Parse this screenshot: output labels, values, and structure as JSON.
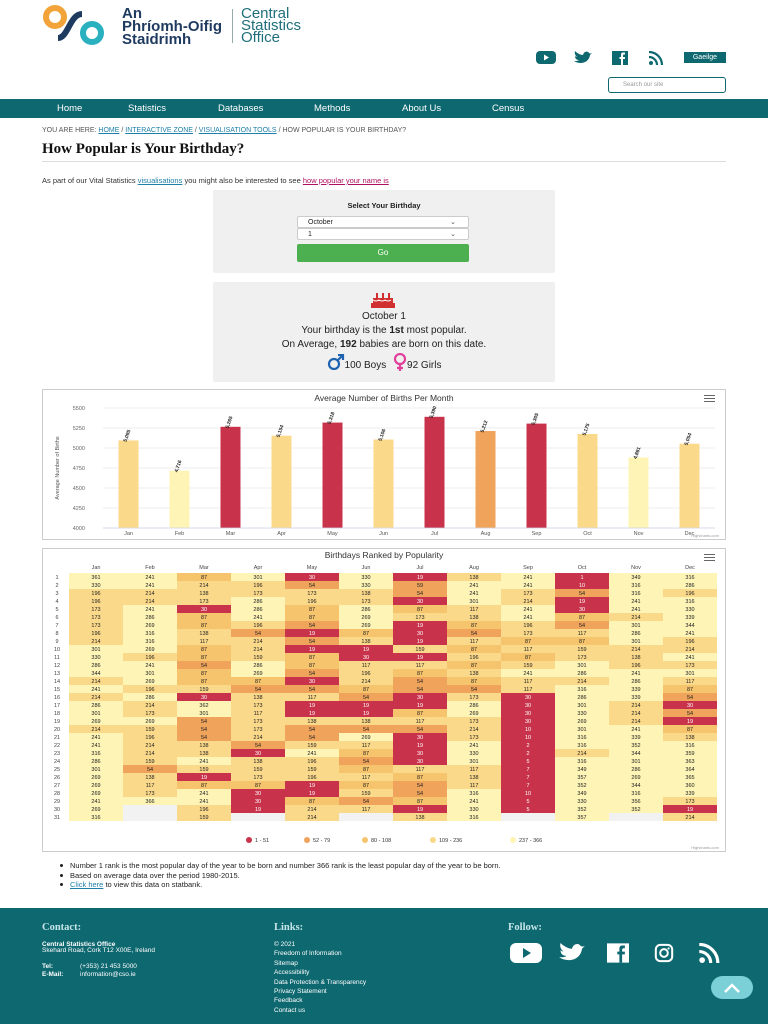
{
  "logo": {
    "irish_line1": "An",
    "irish_line2": "Phríomh-Oifig",
    "irish_line3": "Staidrimh",
    "en_line1": "Central",
    "en_line2": "Statistics",
    "en_line3": "Office"
  },
  "header": {
    "language_button": "Gaeilge",
    "search_placeholder": "Search our site",
    "social_icons": [
      "youtube-icon",
      "twitter-icon",
      "facebook-icon",
      "rss-icon"
    ]
  },
  "nav": [
    "Home",
    "Statistics",
    "Databases",
    "Methods",
    "About Us",
    "Census"
  ],
  "breadcrumb": {
    "prefix": "YOU ARE HERE:",
    "home": "HOME",
    "zone": "INTERACTIVE ZONE",
    "tools": "VISUALISATION TOOLS",
    "current": "/ HOW POPULAR IS YOUR BIRTHDAY?"
  },
  "page_title": "How Popular is Your Birthday?",
  "intro": {
    "before": "As part of our Vital Statistics",
    "link1": "visualisations",
    "middle": "you might also be interested to see",
    "link2": "how popular your name is"
  },
  "selector": {
    "label": "Select Your Birthday",
    "month": "October",
    "day": "1",
    "go": "Go"
  },
  "result": {
    "date": "October 1",
    "rank_pre": "Your birthday is the",
    "rank": "1st",
    "rank_post": "most popular.",
    "avg_pre": "On Average,",
    "avg": "192",
    "avg_post": "babies are born on this date.",
    "boys": "100 Boys",
    "girls": "92 Girls"
  },
  "notes": {
    "n1": "Number 1 rank is the most popular day of the year to be born and number 366 rank is the least popular day of the year to be born.",
    "n2": "Based on average data over the period 1980-2015.",
    "n3_link": "Click here",
    "n3_rest": "to view this data on statbank."
  },
  "footer": {
    "contact_h": "Contact:",
    "org": "Central Statistics Office",
    "address": "Skehard Road, Cork T12 X00E, Ireland",
    "tel_l": "Tel:",
    "tel": "(+353) 21 453 5000",
    "email_l": "E-Mail:",
    "email": "information@cso.ie",
    "links_h": "Links:",
    "links": [
      "© 2021",
      "Freedom of Information",
      "Sitemap",
      "Accessibility",
      "Data Protection & Transparency",
      "Privacy Statement",
      "Feedback",
      "Contact us"
    ],
    "follow_h": "Follow:"
  },
  "colors": {
    "teal": "#0e6870",
    "band1": "#c8334b",
    "band2": "#f0a35a",
    "band3": "#f6c46d",
    "band4": "#fbd98a",
    "band5": "#fdf4b6"
  },
  "chart_data": [
    {
      "type": "bar",
      "title": "Average Number of Births Per Month",
      "categories": [
        "Jan",
        "Feb",
        "Mar",
        "Apr",
        "May",
        "Jun",
        "Jul",
        "Aug",
        "Sep",
        "Oct",
        "Nov",
        "Dec"
      ],
      "values": [
        5095,
        4716,
        5265,
        5154,
        5318,
        5106,
        5390,
        5212,
        5305,
        5175,
        4881,
        5054
      ],
      "value_labels": [
        "5,095",
        "4,716",
        "5,265",
        "5,154",
        "5,318",
        "5,106",
        "5,390",
        "5,212",
        "5,305",
        "5,175",
        "4,881",
        "5,054"
      ],
      "bar_colors": [
        "#fbd98a",
        "#fdf4b6",
        "#c8334b",
        "#fbd98a",
        "#c8334b",
        "#fbd98a",
        "#c8334b",
        "#f0a35a",
        "#c8334b",
        "#fbd98a",
        "#fdf4b6",
        "#fbd98a"
      ],
      "ylabel": "Average Number of Births",
      "ylim": [
        4000,
        5500
      ],
      "yticks": [
        4000,
        4250,
        4500,
        4750,
        5000,
        5250,
        5500
      ],
      "credit": "Highcharts.com"
    },
    {
      "type": "heatmap",
      "title": "Birthdays Ranked by Popularity",
      "columns": [
        "Jan",
        "Feb",
        "Mar",
        "Apr",
        "May",
        "Jun",
        "Jul",
        "Aug",
        "Sep",
        "Oct",
        "Nov",
        "Dec"
      ],
      "rows": [
        1,
        2,
        3,
        4,
        5,
        6,
        7,
        8,
        9,
        10,
        11,
        12,
        13,
        14,
        15,
        16,
        17,
        18,
        19,
        20,
        21,
        22,
        23,
        24,
        25,
        26,
        27,
        28,
        29,
        30,
        31
      ],
      "values": [
        [
          361,
          241,
          87,
          301,
          30,
          330,
          19,
          138,
          241,
          1,
          349,
          316
        ],
        [
          330,
          241,
          214,
          196,
          54,
          330,
          59,
          241,
          241,
          10,
          316,
          286
        ],
        [
          196,
          214,
          138,
          173,
          173,
          138,
          54,
          241,
          173,
          54,
          316,
          196
        ],
        [
          196,
          214,
          173,
          286,
          196,
          173,
          30,
          301,
          214,
          19,
          241,
          316
        ],
        [
          173,
          241,
          30,
          286,
          87,
          286,
          87,
          117,
          241,
          30,
          241,
          330
        ],
        [
          173,
          286,
          87,
          241,
          87,
          269,
          173,
          138,
          241,
          87,
          214,
          339
        ],
        [
          173,
          269,
          87,
          196,
          54,
          269,
          19,
          87,
          196,
          54,
          301,
          344
        ],
        [
          196,
          316,
          138,
          54,
          19,
          87,
          30,
          54,
          173,
          117,
          286,
          241
        ],
        [
          214,
          316,
          117,
          214,
          54,
          138,
          19,
          117,
          87,
          87,
          301,
          196
        ],
        [
          301,
          269,
          87,
          214,
          19,
          19,
          159,
          87,
          117,
          159,
          214,
          214
        ],
        [
          330,
          196,
          87,
          159,
          87,
          30,
          19,
          196,
          87,
          173,
          138,
          241
        ],
        [
          286,
          241,
          54,
          286,
          87,
          117,
          117,
          87,
          159,
          301,
          196,
          173
        ],
        [
          344,
          301,
          87,
          269,
          54,
          196,
          87,
          138,
          241,
          286,
          241,
          301
        ],
        [
          214,
          269,
          87,
          87,
          30,
          214,
          54,
          87,
          117,
          214,
          286,
          117
        ],
        [
          241,
          196,
          159,
          54,
          54,
          87,
          54,
          54,
          117,
          316,
          339,
          87
        ],
        [
          214,
          286,
          30,
          138,
          117,
          54,
          30,
          173,
          30,
          286,
          339,
          54
        ],
        [
          286,
          214,
          362,
          173,
          19,
          19,
          19,
          286,
          30,
          301,
          214,
          30
        ],
        [
          301,
          173,
          301,
          117,
          19,
          19,
          87,
          269,
          30,
          330,
          214,
          54
        ],
        [
          269,
          269,
          54,
          173,
          138,
          138,
          117,
          173,
          30,
          269,
          214,
          19
        ],
        [
          214,
          159,
          54,
          173,
          54,
          54,
          54,
          214,
          10,
          301,
          241,
          87
        ],
        [
          241,
          196,
          54,
          214,
          54,
          269,
          30,
          173,
          10,
          316,
          339,
          138
        ],
        [
          241,
          214,
          138,
          54,
          159,
          117,
          19,
          241,
          2,
          316,
          352,
          316
        ],
        [
          316,
          214,
          138,
          30,
          241,
          87,
          30,
          330,
          2,
          214,
          344,
          359
        ],
        [
          286,
          159,
          241,
          138,
          196,
          54,
          30,
          301,
          5,
          316,
          301,
          363
        ],
        [
          301,
          54,
          159,
          159,
          159,
          87,
          117,
          117,
          7,
          349,
          286,
          364
        ],
        [
          269,
          138,
          19,
          173,
          196,
          117,
          87,
          138,
          7,
          357,
          269,
          365
        ],
        [
          269,
          117,
          87,
          87,
          19,
          87,
          54,
          117,
          7,
          352,
          344,
          360
        ],
        [
          269,
          173,
          241,
          30,
          19,
          159,
          54,
          316,
          10,
          349,
          316,
          339
        ],
        [
          241,
          366,
          241,
          30,
          87,
          54,
          87,
          241,
          5,
          330,
          356,
          173
        ],
        [
          269,
          null,
          196,
          19,
          214,
          117,
          19,
          330,
          5,
          352,
          352,
          19
        ],
        [
          316,
          null,
          159,
          null,
          214,
          null,
          138,
          316,
          null,
          357,
          null,
          214
        ]
      ],
      "legend": [
        "1 - 51",
        "52 - 79",
        "80 - 108",
        "109 - 236",
        "237 - 366"
      ],
      "credit": "Highcharts.com"
    }
  ]
}
